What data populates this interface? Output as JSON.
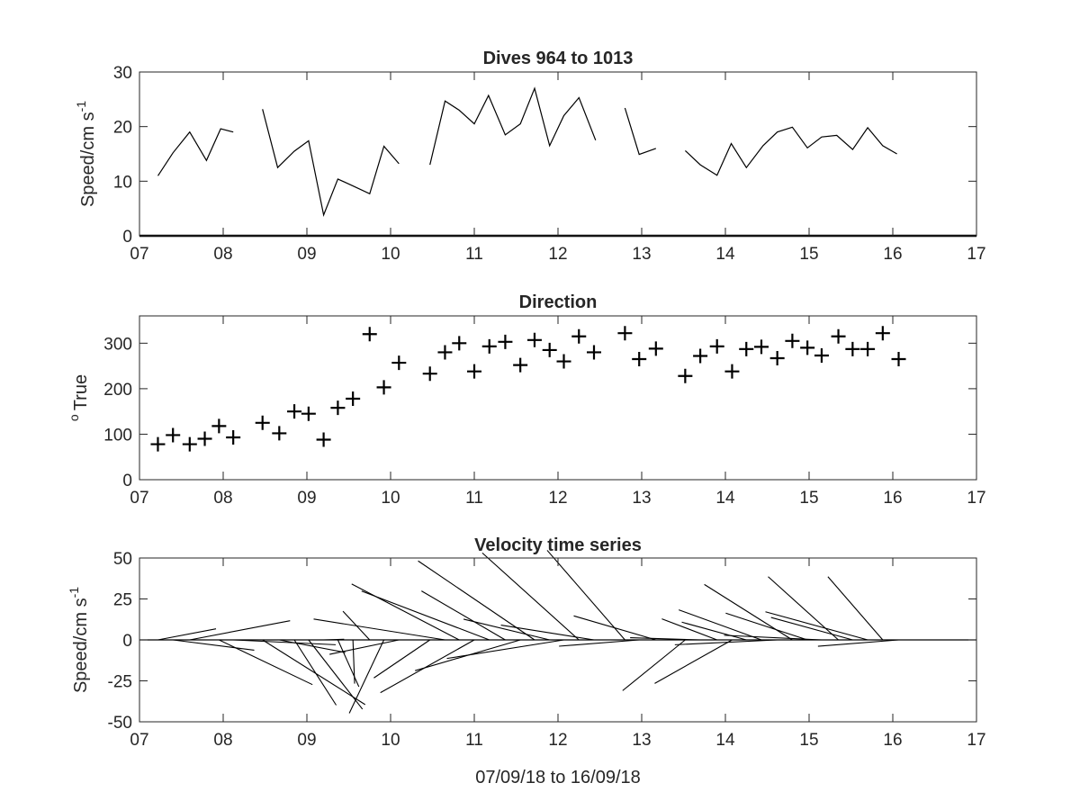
{
  "chart_data": [
    {
      "type": "line",
      "title": "Dives 964 to 1013",
      "ylabel": "Speed/cm s",
      "ylabel_sup": "-1",
      "xlabel": "",
      "xlim": [
        7,
        17
      ],
      "ylim": [
        0,
        30
      ],
      "xticks": [
        7,
        8,
        9,
        10,
        11,
        12,
        13,
        14,
        15,
        16,
        17
      ],
      "xtick_labels": [
        "07",
        "08",
        "09",
        "10",
        "11",
        "12",
        "13",
        "14",
        "15",
        "16",
        "17"
      ],
      "yticks": [
        0,
        10,
        20,
        30
      ],
      "ytick_labels": [
        "0",
        "10",
        "20",
        "30"
      ],
      "grid": false,
      "segments": [
        [
          [
            7.22,
            11
          ],
          [
            7.4,
            15.2
          ],
          [
            7.6,
            19
          ],
          [
            7.8,
            13.8
          ],
          [
            7.97,
            19.6
          ],
          [
            8.12,
            19
          ]
        ],
        [
          [
            8.47,
            23.2
          ],
          [
            8.65,
            12.5
          ],
          [
            8.85,
            15.5
          ],
          [
            9.02,
            17.4
          ],
          [
            9.2,
            3.8
          ],
          [
            9.37,
            10.4
          ],
          [
            9.57,
            9
          ],
          [
            9.75,
            7.7
          ],
          [
            9.92,
            16.4
          ],
          [
            10.1,
            13.2
          ]
        ],
        [
          [
            10.47,
            13
          ],
          [
            10.65,
            24.7
          ],
          [
            10.82,
            23
          ],
          [
            11.0,
            20.5
          ],
          [
            11.17,
            25.7
          ],
          [
            11.37,
            18.5
          ],
          [
            11.55,
            20.5
          ],
          [
            11.72,
            27
          ],
          [
            11.9,
            16.5
          ],
          [
            12.07,
            22
          ],
          [
            12.25,
            25.3
          ],
          [
            12.45,
            17.5
          ]
        ],
        [
          [
            12.8,
            23.4
          ],
          [
            12.97,
            14.9
          ],
          [
            13.17,
            16
          ]
        ],
        [
          [
            13.52,
            15.6
          ],
          [
            13.7,
            13
          ],
          [
            13.9,
            11.1
          ],
          [
            14.07,
            16.9
          ],
          [
            14.25,
            12.5
          ],
          [
            14.45,
            16.5
          ],
          [
            14.62,
            19
          ],
          [
            14.8,
            19.9
          ],
          [
            14.98,
            16.1
          ],
          [
            15.15,
            18.1
          ],
          [
            15.33,
            18.4
          ],
          [
            15.52,
            15.8
          ],
          [
            15.7,
            19.8
          ],
          [
            15.88,
            16.5
          ],
          [
            16.05,
            15
          ]
        ]
      ]
    },
    {
      "type": "scatter",
      "title": "Direction",
      "ylabel": "True",
      "ylabel_sup": "o",
      "xlabel": "",
      "xlim": [
        7,
        17
      ],
      "ylim": [
        0,
        360
      ],
      "xticks": [
        7,
        8,
        9,
        10,
        11,
        12,
        13,
        14,
        15,
        16,
        17
      ],
      "xtick_labels": [
        "07",
        "08",
        "09",
        "10",
        "11",
        "12",
        "13",
        "14",
        "15",
        "16",
        "17"
      ],
      "yticks": [
        0,
        100,
        200,
        300
      ],
      "ytick_labels": [
        "0",
        "100",
        "200",
        "300"
      ],
      "grid": false,
      "marker": "+",
      "x": [
        7.22,
        7.4,
        7.6,
        7.78,
        7.95,
        8.12,
        8.47,
        8.67,
        8.85,
        9.02,
        9.2,
        9.37,
        9.55,
        9.75,
        9.92,
        10.1,
        10.47,
        10.65,
        10.82,
        11.0,
        11.18,
        11.37,
        11.55,
        11.72,
        11.9,
        12.07,
        12.25,
        12.43,
        12.8,
        12.97,
        13.17,
        13.52,
        13.7,
        13.9,
        14.08,
        14.25,
        14.43,
        14.62,
        14.8,
        14.98,
        15.15,
        15.35,
        15.52,
        15.7,
        15.88,
        16.07
      ],
      "y": [
        78,
        98,
        78,
        90,
        118,
        93,
        125,
        102,
        150,
        145,
        88,
        158,
        178,
        320,
        203,
        257,
        233,
        280,
        300,
        238,
        293,
        303,
        252,
        307,
        285,
        260,
        315,
        280,
        322,
        265,
        288,
        228,
        272,
        293,
        238,
        287,
        292,
        267,
        305,
        290,
        273,
        315,
        287,
        287,
        322,
        265
      ]
    },
    {
      "type": "quiver",
      "title": "Velocity time series",
      "ylabel": "Speed/cm s",
      "ylabel_sup": "-1",
      "xlabel": "07/09/18 to 16/09/18",
      "xlim": [
        7,
        17
      ],
      "ylim": [
        -50,
        50
      ],
      "xticks": [
        7,
        8,
        9,
        10,
        11,
        12,
        13,
        14,
        15,
        16,
        17
      ],
      "xtick_labels": [
        "07",
        "08",
        "09",
        "10",
        "11",
        "12",
        "13",
        "14",
        "15",
        "16",
        "17"
      ],
      "yticks": [
        -50,
        -25,
        0,
        25,
        50
      ],
      "ytick_labels": [
        "-50",
        "-25",
        "0",
        "25",
        "50"
      ],
      "grid": false,
      "x": [
        7.22,
        7.4,
        7.6,
        7.78,
        7.95,
        8.12,
        8.47,
        8.67,
        8.85,
        9.02,
        9.2,
        9.37,
        9.55,
        9.75,
        9.92,
        10.1,
        10.47,
        10.65,
        10.82,
        11.0,
        11.18,
        11.37,
        11.55,
        11.72,
        11.9,
        12.07,
        12.25,
        12.43,
        12.8,
        12.97,
        13.17,
        13.52,
        13.7,
        13.9,
        14.08,
        14.25,
        14.43,
        14.62,
        14.8,
        14.98,
        15.15,
        15.35,
        15.52,
        15.7,
        15.88,
        16.07
      ],
      "speed": [
        11,
        15.2,
        19,
        13.8,
        19.6,
        19,
        23.2,
        12.5,
        15.5,
        17.4,
        3.8,
        10.4,
        9,
        7.7,
        16.4,
        13.2,
        13,
        24.7,
        23,
        20.5,
        25.7,
        18.5,
        20.5,
        27,
        16.5,
        22,
        25.3,
        17.5,
        23.4,
        14.9,
        16,
        15.6,
        13,
        11.1,
        16.9,
        12.5,
        16.5,
        19,
        19.9,
        16.1,
        18.1,
        18.4,
        15.8,
        19.8,
        16.5,
        15
      ],
      "direction_deg_true": [
        78,
        98,
        78,
        90,
        118,
        93,
        125,
        102,
        150,
        145,
        88,
        158,
        178,
        320,
        203,
        257,
        233,
        280,
        300,
        238,
        293,
        303,
        252,
        307,
        285,
        260,
        315,
        280,
        322,
        265,
        288,
        228,
        272,
        293,
        238,
        287,
        292,
        267,
        305,
        290,
        273,
        315,
        287,
        287,
        322,
        265
      ]
    }
  ]
}
